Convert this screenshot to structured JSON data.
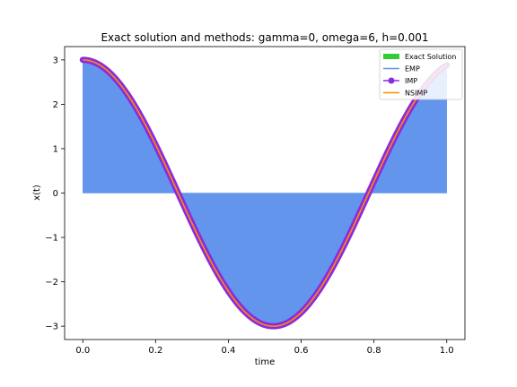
{
  "chart_data": {
    "type": "line",
    "title": "Exact solution and methods: gamma=0, omega=6, h=0.001",
    "xlabel": "time",
    "ylabel": "x(t)",
    "xlim": [
      -0.05,
      1.05
    ],
    "ylim": [
      -3.3,
      3.3
    ],
    "xticks": [
      0.0,
      0.2,
      0.4,
      0.6,
      0.8,
      1.0
    ],
    "xtick_labels": [
      "0.0",
      "0.2",
      "0.4",
      "0.6",
      "0.8",
      "1.0"
    ],
    "yticks": [
      3,
      2,
      1,
      0,
      -1,
      -2,
      -3
    ],
    "ytick_labels": [
      "3",
      "2",
      "1",
      "0",
      "−1",
      "−2",
      "−3"
    ],
    "legend_position": "top-right",
    "grid": false,
    "function": "x(t) = 3*cos(6*t), t in [0, 1]",
    "x": [
      0.0,
      0.1,
      0.2,
      0.3,
      0.4,
      0.5,
      0.6,
      0.7,
      0.8,
      0.9,
      1.0
    ],
    "series": [
      {
        "name": "Exact Solution",
        "color": "#32cd32",
        "style": "thick-line",
        "values": [
          3.0,
          2.48,
          1.09,
          -0.68,
          -2.21,
          -2.97,
          -2.68,
          -1.47,
          0.26,
          1.9,
          2.88
        ]
      },
      {
        "name": "EMP",
        "color": "#6495ed",
        "style": "filled-oscillation",
        "values": [
          3.0,
          2.48,
          1.09,
          -0.68,
          -2.21,
          -2.97,
          -2.68,
          -1.47,
          0.26,
          1.9,
          2.88
        ]
      },
      {
        "name": "IMP",
        "color": "#8a2be2",
        "style": "line-with-markers",
        "values": [
          3.0,
          2.48,
          1.09,
          -0.68,
          -2.21,
          -2.97,
          -2.68,
          -1.47,
          0.26,
          1.9,
          2.88
        ]
      },
      {
        "name": "NSIMP",
        "color": "#ff8c00",
        "style": "line",
        "values": [
          3.0,
          2.48,
          1.09,
          -0.68,
          -2.21,
          -2.97,
          -2.68,
          -1.47,
          0.26,
          1.9,
          2.88
        ]
      }
    ]
  }
}
